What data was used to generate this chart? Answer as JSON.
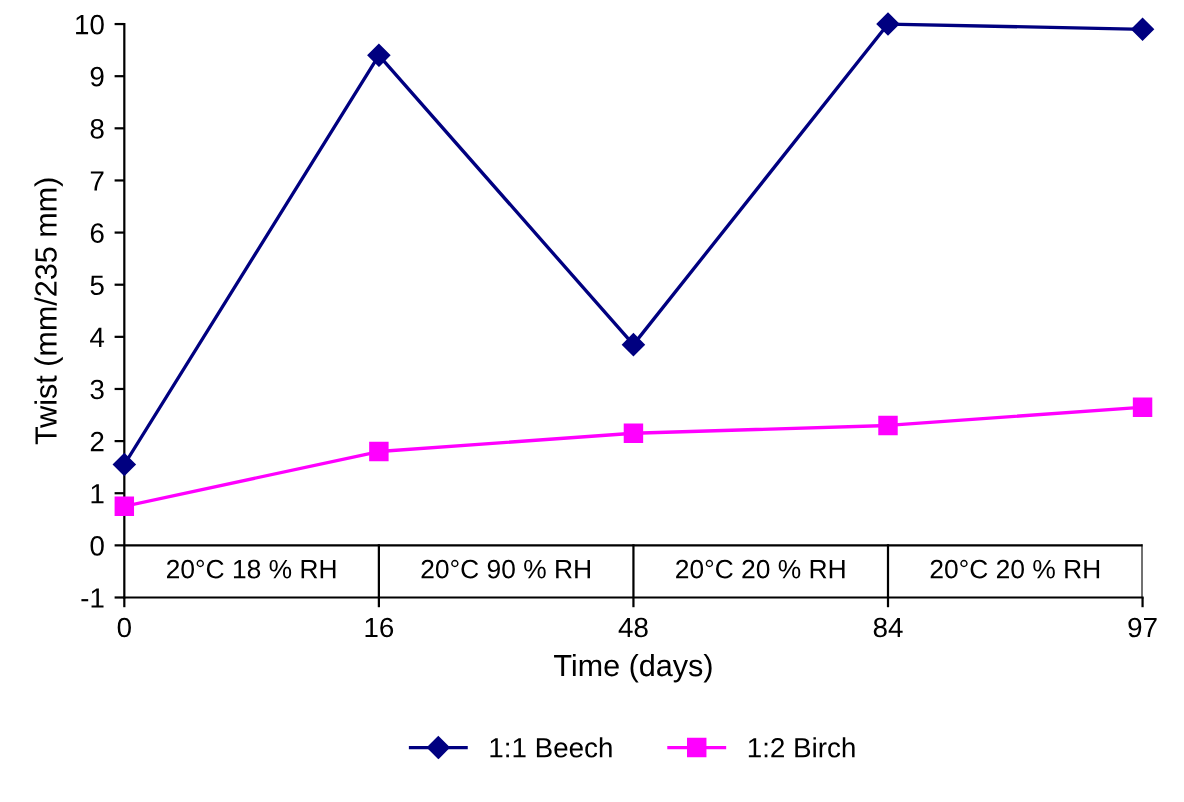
{
  "chart_data": {
    "type": "line",
    "xlabel": "Time (days)",
    "ylabel": "Twist (mm/235 mm)",
    "categories": [
      "0",
      "16",
      "48",
      "84",
      "97"
    ],
    "series": [
      {
        "name": "1:1 Beech",
        "color": "#000080",
        "marker": "diamond",
        "values": [
          1.55,
          9.4,
          3.85,
          10.0,
          9.9
        ]
      },
      {
        "name": "1:2 Birch",
        "color": "#ff00ff",
        "marker": "square",
        "values": [
          0.75,
          1.8,
          2.15,
          2.3,
          2.65
        ]
      }
    ],
    "ylim": [
      -1,
      10
    ],
    "yticks": [
      -1,
      0,
      1,
      2,
      3,
      4,
      5,
      6,
      7,
      8,
      9,
      10
    ],
    "annotations": [
      "20°C 18 % RH",
      "20°C 90 % RH",
      "20°C 20 % RH",
      "20°C 20 % RH"
    ],
    "ref_lines": [
      {
        "axis": "y",
        "value": 0,
        "color": "#000000"
      }
    ],
    "grid": false,
    "legend": "bottom",
    "line_style": "solid"
  }
}
